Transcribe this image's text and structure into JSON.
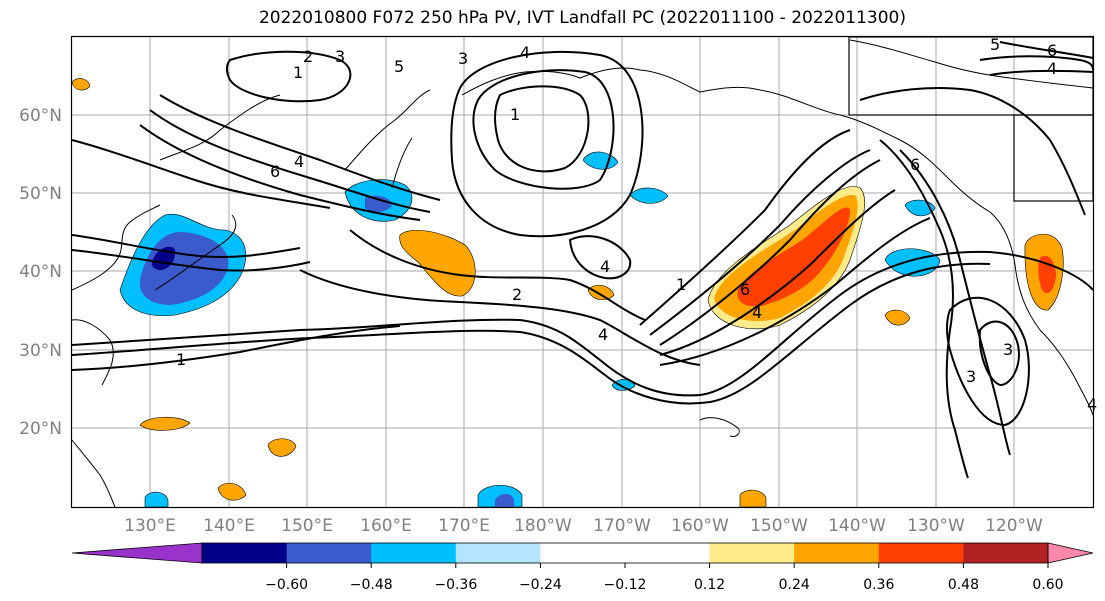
{
  "title": "2022010800 F072 250 hPa PV, IVT Landfall PC (2022011100 - 2022011300)",
  "lat_labels": [
    "60°N",
    "50°N",
    "40°N",
    "30°N",
    "20°N"
  ],
  "lon_labels": [
    "130°E",
    "140°E",
    "150°E",
    "160°E",
    "170°E",
    "180°W",
    "170°W",
    "160°W",
    "150°W",
    "140°W",
    "130°W",
    "120°W"
  ],
  "colorbar": {
    "colors": [
      "#9933cc",
      "#00008b",
      "#3a5bcc",
      "#00bfff",
      "#b3e5fc",
      "#ffffff",
      "#ffffff",
      "#ffeb8a",
      "#ffa500",
      "#ff4000",
      "#b22222",
      "#ff88aa"
    ],
    "tick_labels": [
      "−0.60",
      "−0.48",
      "−0.36",
      "−0.24",
      "−0.12",
      "0.12",
      "0.24",
      "0.36",
      "0.48",
      "0.60"
    ]
  },
  "contour_labels": {
    "nw_a": "2",
    "nw_b": "3",
    "nw_c": "1",
    "nw_d": "3",
    "nw_e": "5",
    "nw_f": "4",
    "jet_a": "6",
    "jet_b": "4",
    "jet_c": "1",
    "jet_d": "1",
    "mid_a": "2",
    "mid_b": "4",
    "mid_c": "4",
    "mid_d": "1",
    "ak_a": "6",
    "ak_b": "4",
    "ne_a": "6",
    "ne_b": "4",
    "ne_c": "5",
    "east_a": "6",
    "east_b": "3",
    "east_c": "3",
    "east_d": "4"
  }
}
